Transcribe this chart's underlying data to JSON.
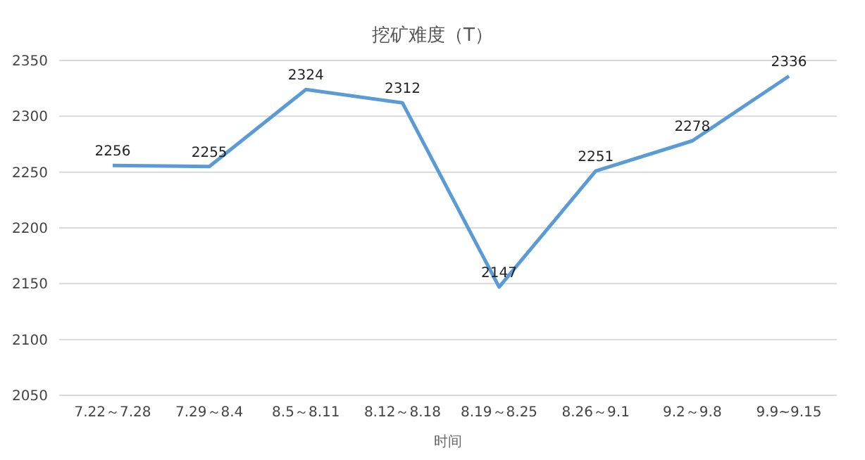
{
  "chart_data": {
    "type": "line",
    "title": "挖矿难度（T）",
    "xlabel": "时间",
    "categories": [
      "7.22～7.28",
      "7.29～8.4",
      "8.5～8.11",
      "8.12～8.18",
      "8.19～8.25",
      "8.26～9.1",
      "9.2～9.8",
      "9.9~9.15"
    ],
    "series": [
      {
        "color": "#5b9bd5",
        "values": [
          2256,
          2255,
          2324,
          2312,
          2147,
          2251,
          2278,
          2336
        ]
      }
    ],
    "ylim": [
      2050,
      2350
    ],
    "yticks": [
      2050,
      2100,
      2150,
      2200,
      2250,
      2300,
      2350
    ],
    "grid": "y",
    "legend": false,
    "marker": "none",
    "line_style": "solid",
    "data_labels": true
  }
}
